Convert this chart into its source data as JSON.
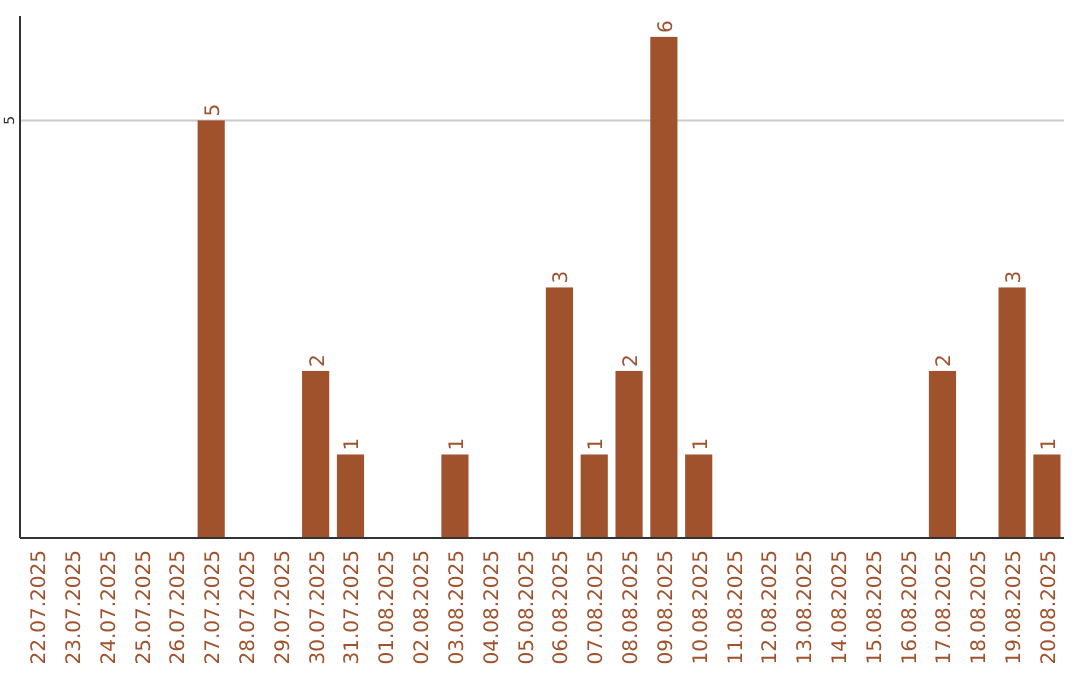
{
  "chart_data": {
    "type": "bar",
    "categories": [
      "22.07.2025",
      "23.07.2025",
      "24.07.2025",
      "25.07.2025",
      "26.07.2025",
      "27.07.2025",
      "28.07.2025",
      "29.07.2025",
      "30.07.2025",
      "31.07.2025",
      "01.08.2025",
      "02.08.2025",
      "03.08.2025",
      "04.08.2025",
      "05.08.2025",
      "06.08.2025",
      "07.08.2025",
      "08.08.2025",
      "09.08.2025",
      "10.08.2025",
      "11.08.2025",
      "12.08.2025",
      "13.08.2025",
      "14.08.2025",
      "15.08.2025",
      "16.08.2025",
      "17.08.2025",
      "18.08.2025",
      "19.08.2025",
      "20.08.2025"
    ],
    "values": [
      0,
      0,
      0,
      0,
      0,
      5,
      0,
      0,
      2,
      1,
      0,
      0,
      1,
      0,
      0,
      3,
      1,
      2,
      6,
      1,
      0,
      0,
      0,
      0,
      0,
      0,
      2,
      0,
      3,
      1
    ],
    "value_labels": [
      null,
      null,
      null,
      null,
      null,
      "5",
      null,
      null,
      "2",
      "1",
      null,
      null,
      "1",
      null,
      null,
      "3",
      "1",
      "2",
      "6",
      "1",
      null,
      null,
      null,
      null,
      null,
      null,
      "2",
      null,
      "3",
      "1"
    ],
    "color": "#a0522d",
    "ylim": [
      0,
      6.25
    ],
    "yticks": [
      5
    ],
    "grid": "y"
  }
}
